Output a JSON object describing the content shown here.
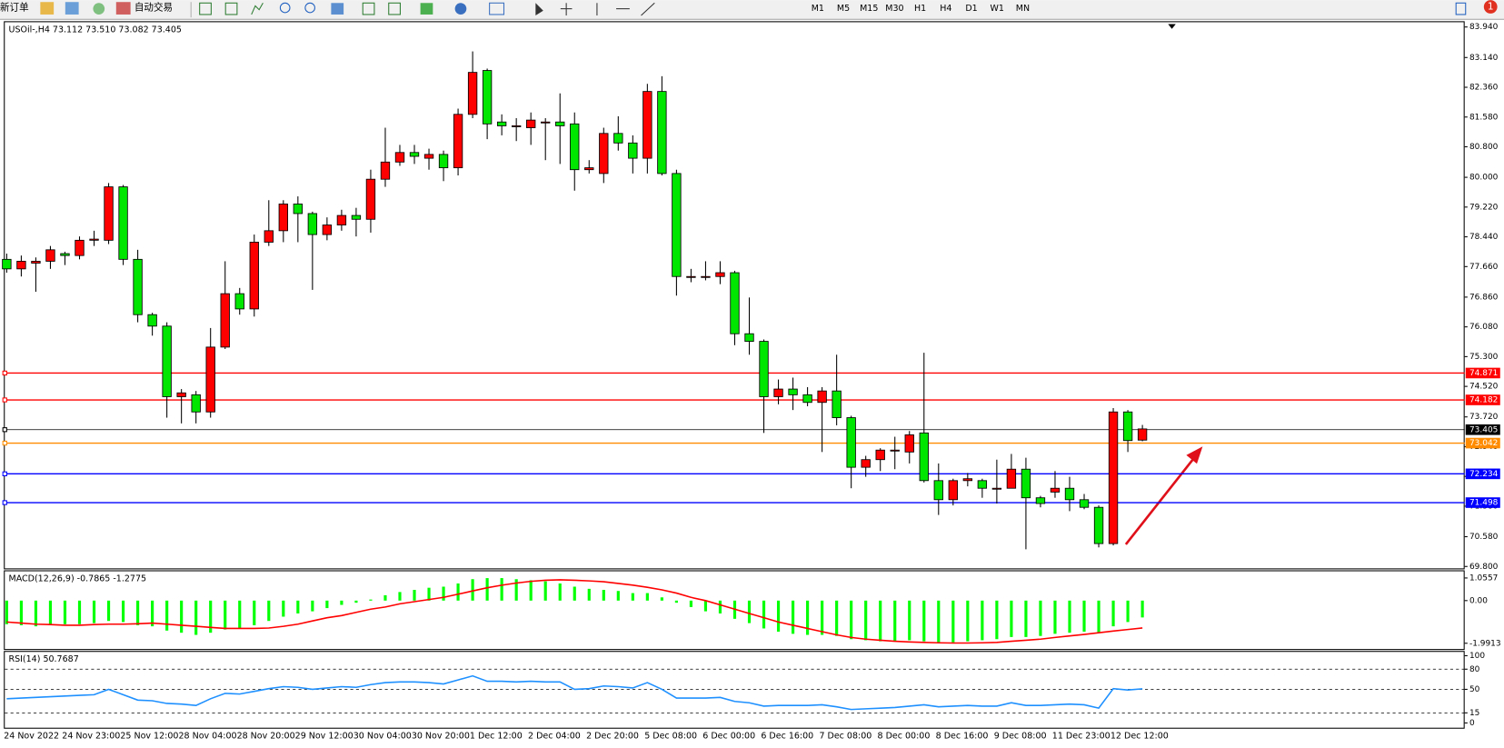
{
  "toolbar": {
    "new_order": "新订单",
    "auto_trading": "自动交易",
    "timeframes": [
      "M1",
      "M5",
      "M15",
      "M30",
      "H1",
      "H4",
      "D1",
      "W1",
      "MN"
    ],
    "notification_count": 1
  },
  "chart_data": [
    {
      "type": "candlestick",
      "title": "USOil-,H4 73.112 73.510 73.082 73.405",
      "categories": [
        "24 Nov 2022",
        null,
        null,
        null,
        "24 Nov 23:00",
        null,
        null,
        null,
        "25 Nov 12:00",
        null,
        null,
        null,
        "28 Nov 04:00",
        null,
        null,
        null,
        "28 Nov 20:00",
        null,
        null,
        null,
        "29 Nov 12:00",
        null,
        null,
        null,
        "30 Nov 04:00",
        null,
        null,
        null,
        "30 Nov 20:00",
        null,
        null,
        null,
        "1 Dec 12:00",
        null,
        null,
        null,
        "2 Dec 04:00",
        null,
        null,
        null,
        "2 Dec 20:00",
        null,
        null,
        null,
        "5 Dec 08:00",
        null,
        null,
        null,
        "6 Dec 00:00",
        null,
        null,
        null,
        "6 Dec 16:00",
        null,
        null,
        null,
        "7 Dec 08:00",
        null,
        null,
        null,
        "8 Dec 00:00",
        null,
        null,
        null,
        "8 Dec 16:00",
        null,
        null,
        null,
        "9 Dec 08:00",
        null,
        null,
        null,
        "11 Dec 23:00",
        null,
        null,
        null,
        "12 Dec 12:00",
        null,
        null
      ],
      "open": [
        77.85,
        77.6,
        77.75,
        77.8,
        78.0,
        77.95,
        78.35,
        78.35,
        79.75,
        77.85,
        76.4,
        76.1,
        74.25,
        74.3,
        73.85,
        75.55,
        76.95,
        76.55,
        78.3,
        78.6,
        79.3,
        79.05,
        78.5,
        78.75,
        79.0,
        78.9,
        79.95,
        80.4,
        80.65,
        80.5,
        80.6,
        80.25,
        81.65,
        82.8,
        81.45,
        81.35,
        81.3,
        81.45,
        81.45,
        81.4,
        80.2,
        80.1,
        81.15,
        80.9,
        80.5,
        82.25,
        80.1,
        77.4,
        77.4,
        77.4,
        77.5,
        75.9,
        75.7,
        74.25,
        74.45,
        74.3,
        74.1,
        74.4,
        73.7,
        72.4,
        72.6,
        72.85,
        72.8,
        73.3,
        72.05,
        71.55,
        72.05,
        72.05,
        71.85,
        71.85,
        72.35,
        71.6,
        71.75,
        71.85,
        71.55,
        71.35,
        70.4,
        73.85,
        73.112
      ],
      "high": [
        78.0,
        77.95,
        77.9,
        78.2,
        78.05,
        78.45,
        78.6,
        79.85,
        79.8,
        78.1,
        76.45,
        76.2,
        74.45,
        74.4,
        76.05,
        77.8,
        77.1,
        78.5,
        79.4,
        79.4,
        79.5,
        79.1,
        78.95,
        79.15,
        79.2,
        80.2,
        81.3,
        80.85,
        80.85,
        80.75,
        80.7,
        81.8,
        83.3,
        82.85,
        81.65,
        81.55,
        81.7,
        81.55,
        82.2,
        81.7,
        80.45,
        81.3,
        81.6,
        81.1,
        82.45,
        82.65,
        80.2,
        77.6,
        77.8,
        77.8,
        77.55,
        76.85,
        75.75,
        74.7,
        74.75,
        74.5,
        74.5,
        75.35,
        73.75,
        72.7,
        72.9,
        73.2,
        73.35,
        75.4,
        72.5,
        72.1,
        72.25,
        72.1,
        72.6,
        72.75,
        72.65,
        71.65,
        72.3,
        72.15,
        71.7,
        71.4,
        73.95,
        73.9,
        73.51
      ],
      "low": [
        77.5,
        77.4,
        77.0,
        77.6,
        77.7,
        77.85,
        78.2,
        78.25,
        77.7,
        76.2,
        75.85,
        73.7,
        73.55,
        73.55,
        73.7,
        75.5,
        76.4,
        76.35,
        78.2,
        78.3,
        78.3,
        77.05,
        78.35,
        78.6,
        78.45,
        78.55,
        79.75,
        80.3,
        80.35,
        80.2,
        79.9,
        80.05,
        81.55,
        81.0,
        81.1,
        80.95,
        80.85,
        80.45,
        80.35,
        79.65,
        80.1,
        79.85,
        80.7,
        80.1,
        80.1,
        80.05,
        76.9,
        77.25,
        77.3,
        77.2,
        75.6,
        75.35,
        73.3,
        74.05,
        73.9,
        74.0,
        72.8,
        73.5,
        71.85,
        72.15,
        72.3,
        72.35,
        72.5,
        72.0,
        71.15,
        71.4,
        71.9,
        71.6,
        71.45,
        71.85,
        70.25,
        71.35,
        71.6,
        71.25,
        71.3,
        70.3,
        70.35,
        72.8,
        73.082
      ],
      "close": [
        77.6,
        77.8,
        77.8,
        78.1,
        77.95,
        78.35,
        78.38,
        79.75,
        77.85,
        76.4,
        76.1,
        74.25,
        74.35,
        73.85,
        75.55,
        76.95,
        76.55,
        78.3,
        78.6,
        79.3,
        79.05,
        78.5,
        78.75,
        79.0,
        78.9,
        79.95,
        80.4,
        80.65,
        80.55,
        80.6,
        80.25,
        81.65,
        82.75,
        81.4,
        81.35,
        81.35,
        81.5,
        81.45,
        81.35,
        80.2,
        80.25,
        81.15,
        80.9,
        80.5,
        82.25,
        80.1,
        77.4,
        77.4,
        77.4,
        77.5,
        75.9,
        75.7,
        74.25,
        74.45,
        74.3,
        74.1,
        74.4,
        73.7,
        72.4,
        72.6,
        72.85,
        72.85,
        73.25,
        72.05,
        71.55,
        72.05,
        72.1,
        71.85,
        71.85,
        72.35,
        71.6,
        71.45,
        71.85,
        71.55,
        71.35,
        70.4,
        73.85,
        73.1,
        73.405
      ],
      "up_color": "#ff0000",
      "down_color": "#00e600",
      "ylim": [
        69.8,
        83.94
      ],
      "yticks": [
        {
          "value": 83.94,
          "label": "83.940"
        },
        {
          "value": 83.14,
          "label": "83.140"
        },
        {
          "value": 82.36,
          "label": "82.360"
        },
        {
          "value": 81.58,
          "label": "81.580"
        },
        {
          "value": 80.8,
          "label": "80.800"
        },
        {
          "value": 80.0,
          "label": "80.000"
        },
        {
          "value": 79.22,
          "label": "79.220"
        },
        {
          "value": 78.44,
          "label": "78.440"
        },
        {
          "value": 77.66,
          "label": "77.660"
        },
        {
          "value": 76.86,
          "label": "76.860"
        },
        {
          "value": 76.08,
          "label": "76.080"
        },
        {
          "value": 75.3,
          "label": "75.300"
        },
        {
          "value": 74.52,
          "label": "74.520"
        },
        {
          "value": 73.72,
          "label": "73.720"
        },
        {
          "value": 72.94,
          "label": "72.940"
        },
        {
          "value": 72.16,
          "label": "72.160"
        },
        {
          "value": 71.38,
          "label": "71.380"
        },
        {
          "value": 70.58,
          "label": "70.580"
        },
        {
          "value": 69.8,
          "label": "69.800"
        }
      ],
      "levels": [
        {
          "value": 74.871,
          "color": "#ff0000"
        },
        {
          "value": 74.182,
          "color": "#ff0000"
        },
        {
          "value": 73.405,
          "color": "#000000"
        },
        {
          "value": 73.042,
          "color": "#ff8c00"
        },
        {
          "value": 72.234,
          "color": "#0000ff"
        },
        {
          "value": 71.498,
          "color": "#0000ff"
        }
      ]
    },
    {
      "type": "macd",
      "title": "MACD(12,26,9) -0.7865 -1.2775",
      "series": [
        {
          "style": "histogram",
          "color": "#00ff00",
          "values": [
            -1.1,
            -1.15,
            -1.2,
            -1.15,
            -1.1,
            -1.1,
            -1.05,
            -0.95,
            -1.0,
            -1.15,
            -1.2,
            -1.4,
            -1.5,
            -1.6,
            -1.5,
            -1.35,
            -1.3,
            -1.15,
            -0.95,
            -0.75,
            -0.6,
            -0.5,
            -0.35,
            -0.2,
            -0.1,
            0.05,
            0.25,
            0.4,
            0.5,
            0.6,
            0.65,
            0.8,
            1.0,
            1.05,
            1.05,
            1.0,
            0.95,
            0.9,
            0.8,
            0.65,
            0.55,
            0.5,
            0.45,
            0.35,
            0.35,
            0.15,
            -0.1,
            -0.3,
            -0.5,
            -0.6,
            -0.85,
            -1.05,
            -1.3,
            -1.45,
            -1.55,
            -1.6,
            -1.6,
            -1.65,
            -1.8,
            -1.85,
            -1.9,
            -1.9,
            -1.85,
            -1.9,
            -1.95,
            -1.95,
            -1.9,
            -1.85,
            -1.8,
            -1.7,
            -1.7,
            -1.65,
            -1.55,
            -1.5,
            -1.45,
            -1.5,
            -1.2,
            -1.0,
            -0.7865
          ]
        },
        {
          "style": "line",
          "color": "#ff0000",
          "values": [
            -1.0,
            -1.05,
            -1.1,
            -1.12,
            -1.15,
            -1.15,
            -1.12,
            -1.1,
            -1.1,
            -1.08,
            -1.05,
            -1.1,
            -1.15,
            -1.2,
            -1.25,
            -1.3,
            -1.3,
            -1.3,
            -1.28,
            -1.2,
            -1.1,
            -0.95,
            -0.8,
            -0.7,
            -0.55,
            -0.4,
            -0.3,
            -0.15,
            -0.05,
            0.05,
            0.15,
            0.3,
            0.45,
            0.6,
            0.72,
            0.82,
            0.9,
            0.95,
            0.97,
            0.95,
            0.92,
            0.88,
            0.8,
            0.72,
            0.62,
            0.5,
            0.35,
            0.15,
            0.0,
            -0.2,
            -0.4,
            -0.6,
            -0.8,
            -1.0,
            -1.15,
            -1.3,
            -1.45,
            -1.6,
            -1.72,
            -1.8,
            -1.85,
            -1.9,
            -1.93,
            -1.95,
            -1.97,
            -1.98,
            -1.98,
            -1.97,
            -1.95,
            -1.9,
            -1.85,
            -1.8,
            -1.72,
            -1.65,
            -1.58,
            -1.5,
            -1.42,
            -1.35,
            -1.2775
          ]
        }
      ],
      "ylim": [
        -1.9913,
        1.0557
      ],
      "yticks": [
        1.0557,
        {
          "value": 0,
          "label": "0.00"
        },
        -1.9913
      ]
    },
    {
      "type": "line",
      "title": "RSI(14) 50.7687",
      "series": [
        {
          "color": "#1e90ff",
          "values": [
            36,
            37,
            38,
            39,
            40,
            41,
            42,
            50,
            42,
            34,
            33,
            29,
            28,
            26,
            36,
            44,
            43,
            47,
            51,
            54,
            53,
            50,
            52,
            54,
            53,
            57,
            60,
            61,
            61,
            60,
            58,
            64,
            70,
            62,
            62,
            61,
            62,
            61,
            61,
            50,
            51,
            55,
            54,
            52,
            60,
            50,
            37,
            37,
            37,
            38,
            32,
            30,
            25,
            26,
            26,
            26,
            27,
            24,
            20,
            21,
            22,
            23,
            25,
            27,
            24,
            25,
            26,
            25,
            25,
            30,
            26,
            26,
            27,
            28,
            27,
            22,
            51,
            49,
            50.7687
          ]
        }
      ],
      "ylim": [
        0,
        100
      ],
      "yticks": [
        100,
        80,
        50,
        15,
        0
      ],
      "levels": [
        80,
        50,
        15
      ]
    }
  ]
}
